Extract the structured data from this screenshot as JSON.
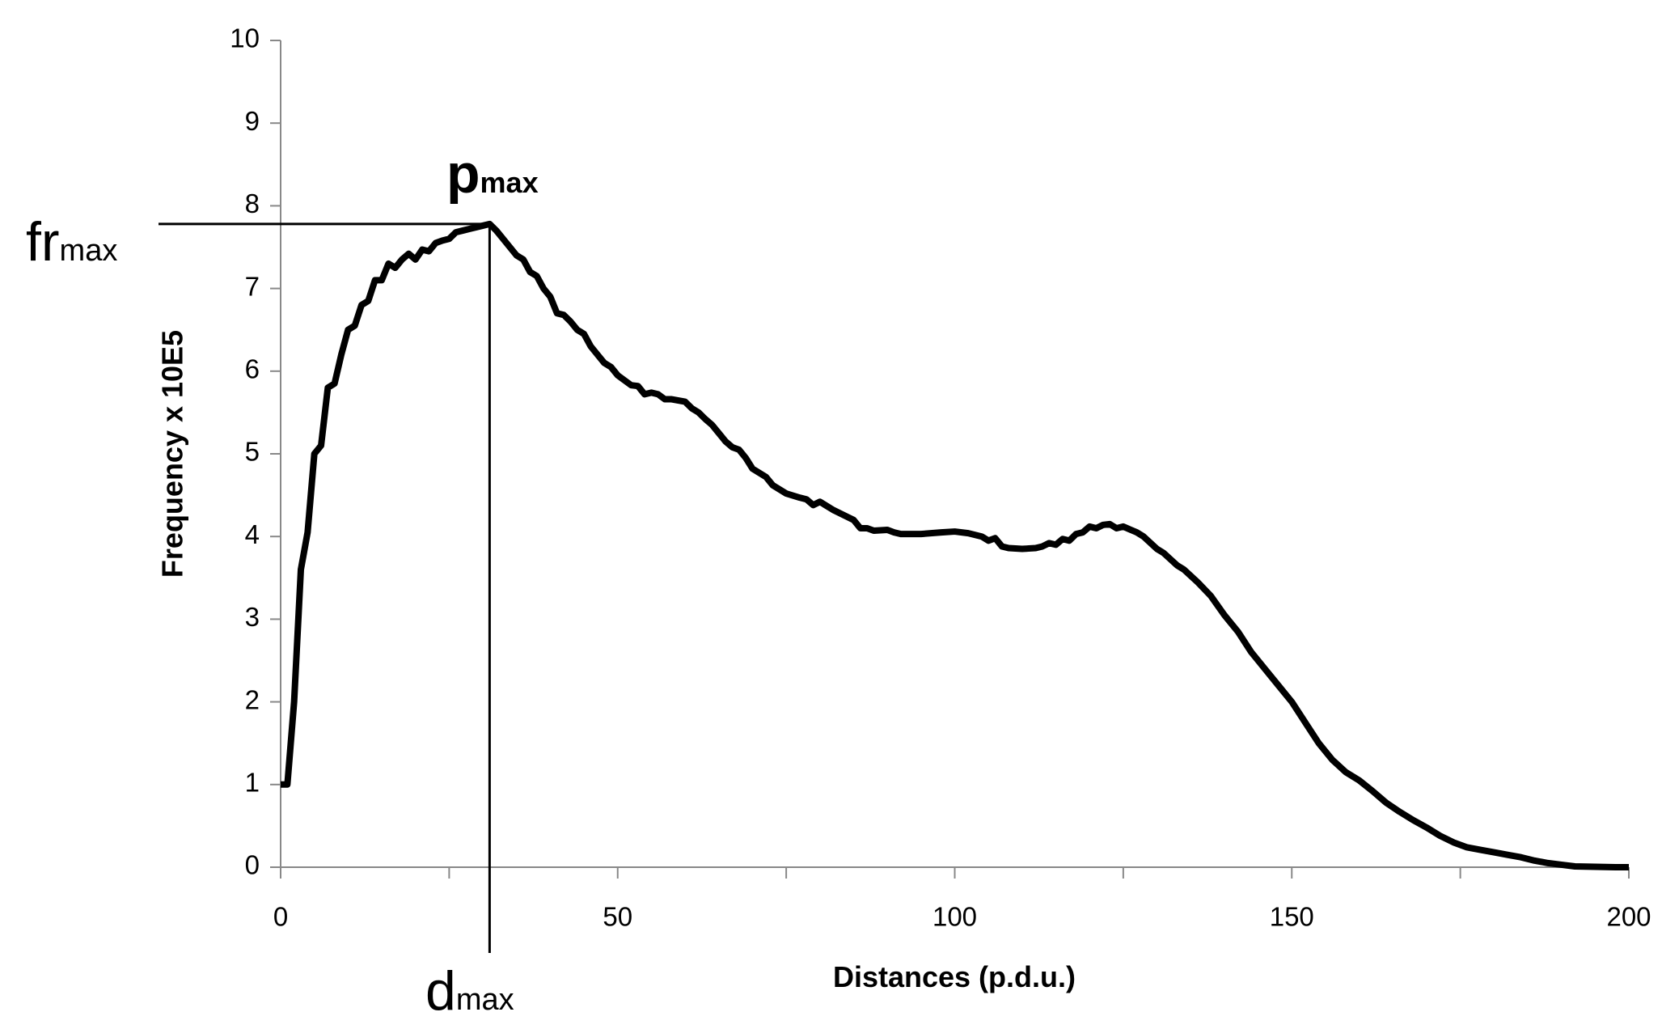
{
  "chart_data": {
    "type": "line",
    "xlabel": "Distances (p.d.u.)",
    "ylabel": "Frequency x 10E5",
    "x": [
      0,
      1,
      2,
      3,
      4,
      5,
      6,
      7,
      8,
      9,
      10,
      11,
      12,
      13,
      14,
      15,
      16,
      17,
      18,
      19,
      20,
      21,
      22,
      23,
      24,
      25,
      26,
      27,
      28,
      29,
      30,
      31,
      32,
      33,
      34,
      35,
      36,
      37,
      38,
      39,
      40,
      41,
      42,
      43,
      44,
      45,
      46,
      47,
      48,
      49,
      50,
      52,
      53,
      54,
      55,
      56,
      57,
      58,
      60,
      61,
      62,
      63,
      64,
      65,
      66,
      67,
      68,
      69,
      70,
      72,
      73,
      75,
      77,
      78,
      79,
      80,
      82,
      85,
      86,
      87,
      88,
      90,
      91,
      92,
      95,
      98,
      100,
      102,
      104,
      105,
      106,
      107,
      108,
      110,
      112,
      113,
      114,
      115,
      116,
      117,
      118,
      119,
      120,
      121,
      122,
      123,
      124,
      125,
      127,
      128,
      130,
      131,
      133,
      134,
      136,
      138,
      140,
      142,
      144,
      146,
      148,
      150,
      152,
      154,
      156,
      158,
      160,
      162,
      164,
      166,
      168,
      170,
      172,
      174,
      176,
      178,
      180,
      182,
      184,
      186,
      188,
      190,
      192,
      195,
      198,
      200
    ],
    "series": [
      {
        "name": "Frequency",
        "color": "#000000",
        "values": [
          1.0,
          1.0,
          2.0,
          3.6,
          4.05,
          5.0,
          5.1,
          5.8,
          5.85,
          6.2,
          6.5,
          6.55,
          6.8,
          6.85,
          7.1,
          7.1,
          7.3,
          7.25,
          7.35,
          7.42,
          7.35,
          7.47,
          7.45,
          7.55,
          7.58,
          7.6,
          7.68,
          7.7,
          7.72,
          7.74,
          7.76,
          7.78,
          7.7,
          7.6,
          7.5,
          7.4,
          7.35,
          7.2,
          7.15,
          7.0,
          6.9,
          6.7,
          6.68,
          6.6,
          6.5,
          6.45,
          6.3,
          6.2,
          6.1,
          6.05,
          5.95,
          5.83,
          5.82,
          5.72,
          5.74,
          5.72,
          5.66,
          5.66,
          5.63,
          5.55,
          5.5,
          5.42,
          5.35,
          5.25,
          5.15,
          5.08,
          5.05,
          4.95,
          4.82,
          4.72,
          4.62,
          4.52,
          4.47,
          4.45,
          4.38,
          4.42,
          4.32,
          4.2,
          4.1,
          4.1,
          4.07,
          4.08,
          4.05,
          4.03,
          4.03,
          4.05,
          4.06,
          4.04,
          4.0,
          3.95,
          3.98,
          3.88,
          3.86,
          3.85,
          3.86,
          3.88,
          3.92,
          3.9,
          3.97,
          3.95,
          4.03,
          4.05,
          4.12,
          4.1,
          4.14,
          4.15,
          4.1,
          4.12,
          4.05,
          4.0,
          3.85,
          3.8,
          3.65,
          3.6,
          3.45,
          3.28,
          3.05,
          2.85,
          2.6,
          2.4,
          2.2,
          2.0,
          1.75,
          1.5,
          1.3,
          1.15,
          1.05,
          0.92,
          0.78,
          0.67,
          0.57,
          0.48,
          0.38,
          0.3,
          0.24,
          0.21,
          0.18,
          0.15,
          0.12,
          0.08,
          0.05,
          0.03,
          0.01,
          0.005,
          0,
          0
        ]
      }
    ],
    "xlim": [
      0,
      200
    ],
    "xticks": [
      0,
      50,
      100,
      150,
      200
    ],
    "x_minor_ticks": [
      25,
      75,
      125,
      175
    ],
    "ylim": [
      0,
      10
    ],
    "yticks": [
      0,
      1,
      2,
      3,
      4,
      5,
      6,
      7,
      8,
      9,
      10
    ],
    "peak": {
      "x": 31,
      "y": 7.78
    },
    "annotations": {
      "pmax": {
        "text": "p",
        "sub": "max"
      },
      "frmax": {
        "text": "fr",
        "sub": "max"
      },
      "dmax": {
        "text": "d",
        "sub": "max"
      }
    }
  }
}
